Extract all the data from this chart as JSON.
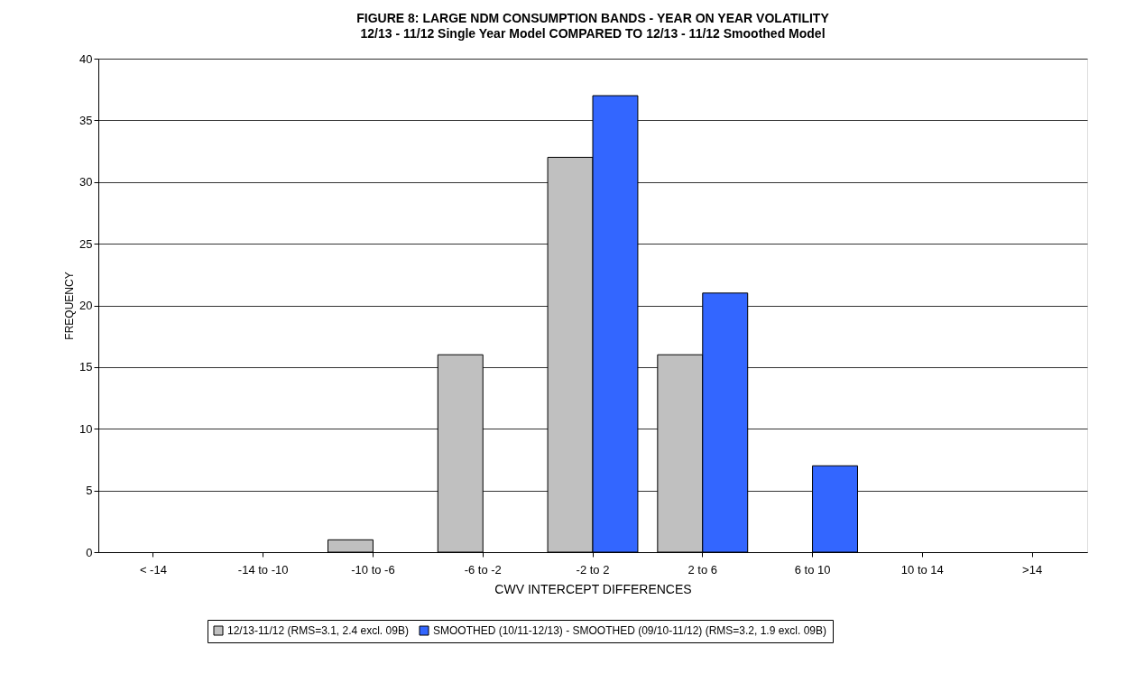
{
  "chart_data": {
    "type": "bar",
    "title": "FIGURE 8: LARGE NDM CONSUMPTION BANDS - YEAR ON YEAR VOLATILITY",
    "subtitle": "12/13 - 11/12 Single Year Model COMPARED TO 12/13 - 11/12 Smoothed Model",
    "xlabel": "CWV INTERCEPT DIFFERENCES",
    "ylabel": "FREQUENCY",
    "categories": [
      "< -14",
      "-14 to -10",
      "-10 to -6",
      "-6 to -2",
      "-2 to 2",
      "2 to 6",
      "6 to 10",
      "10 to 14",
      ">14"
    ],
    "series": [
      {
        "name": "12/13-11/12 (RMS=3.1, 2.4 excl. 09B)",
        "color": "#c0c0c0",
        "values": [
          0,
          0,
          1,
          16,
          32,
          16,
          0,
          0,
          0
        ]
      },
      {
        "name": "SMOOTHED (10/11-12/13) - SMOOTHED (09/10-11/12) (RMS=3.2, 1.9 excl. 09B)",
        "color": "#3366ff",
        "values": [
          0,
          0,
          0,
          0,
          37,
          21,
          7,
          0,
          0
        ]
      }
    ],
    "ylim": [
      0,
      40
    ],
    "yticks": [
      0,
      5,
      10,
      15,
      20,
      25,
      30,
      35,
      40
    ],
    "grid": "y",
    "legend": "bottom"
  }
}
